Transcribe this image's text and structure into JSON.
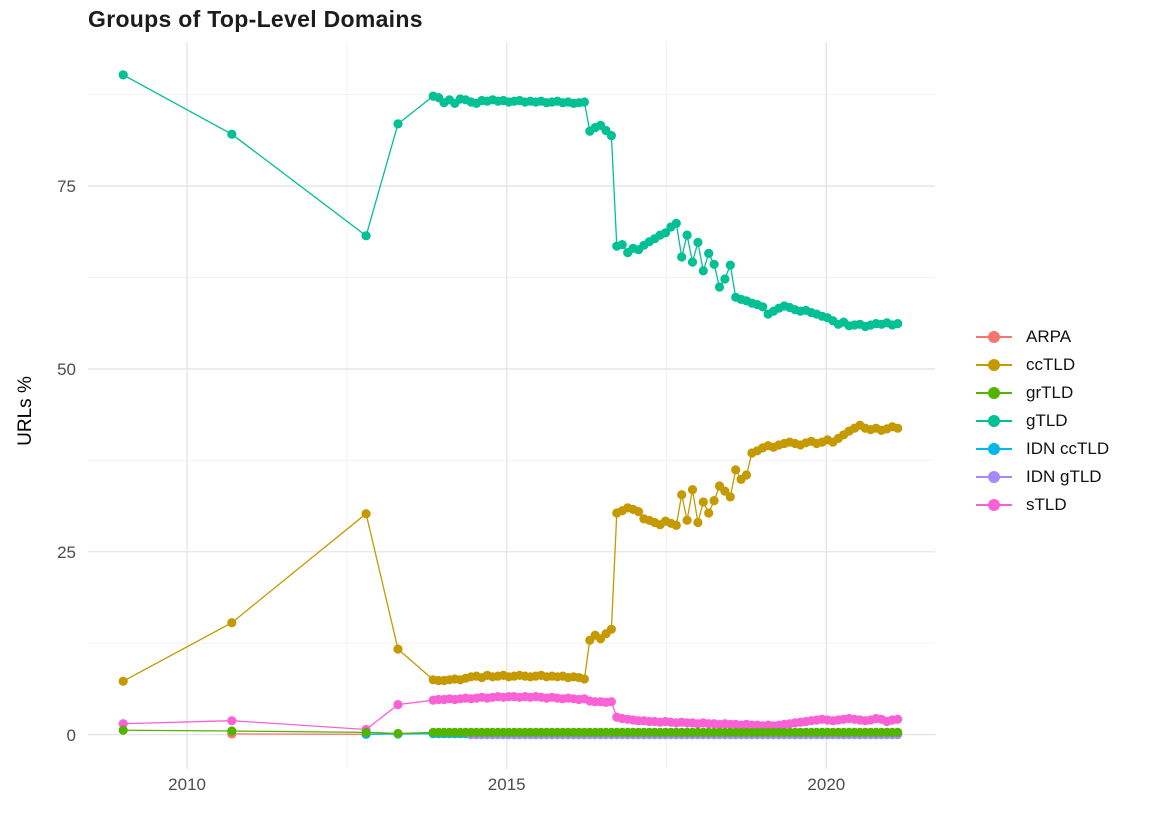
{
  "chart_data": {
    "type": "line",
    "title": "Groups of Top-Level Domains",
    "xlabel": "",
    "ylabel": "URLs %",
    "x_ticks": [
      "2010",
      "2015",
      "2020"
    ],
    "x_tick_values": [
      2010,
      2015,
      2020
    ],
    "x_minor_ticks": [
      2012.5,
      2017.5
    ],
    "y_ticks": [
      "0",
      "25",
      "50",
      "75"
    ],
    "y_tick_values": [
      0,
      25,
      50,
      75
    ],
    "y_minor_ticks": [
      12.5,
      37.5,
      62.5,
      87.5
    ],
    "xlim": [
      2008.45,
      2021.7
    ],
    "ylim": [
      -4.7,
      94.7
    ],
    "grid": true,
    "legend_position": "right",
    "legend": [
      {
        "label": "ARPA",
        "color": "#F8766D"
      },
      {
        "label": "ccTLD",
        "color": "#C49A00"
      },
      {
        "label": "grTLD",
        "color": "#53B400"
      },
      {
        "label": "gTLD",
        "color": "#00C094"
      },
      {
        "label": "IDN ccTLD",
        "color": "#00B6EB"
      },
      {
        "label": "IDN gTLD",
        "color": "#A58AFF"
      },
      {
        "label": "sTLD",
        "color": "#FB61D7"
      }
    ],
    "series": [
      {
        "name": "ARPA",
        "color": "#F8766D",
        "points": [
          [
            2010.7,
            0.1
          ],
          [
            2012.8,
            0.05
          ]
        ]
      },
      {
        "name": "IDN ccTLD",
        "color": "#00B6EB",
        "points": [
          [
            2012.8,
            0.05
          ],
          [
            2013.3,
            0.08
          ]
        ],
        "dense": {
          "x_start": 2013.85,
          "x_step": 0.0845,
          "fill": {
            "count": 87,
            "value": 0.12
          }
        }
      },
      {
        "name": "IDN gTLD",
        "color": "#A58AFF",
        "points": [],
        "dense": {
          "x_start": 2014.44,
          "x_step": 0.0845,
          "fill": {
            "count": 80,
            "value": 0.0
          }
        }
      },
      {
        "name": "ccTLD",
        "color": "#C49A00",
        "points": [
          [
            2009.0,
            7.3
          ],
          [
            2010.7,
            15.3
          ],
          [
            2012.8,
            30.2
          ],
          [
            2013.3,
            11.7
          ]
        ],
        "dense": {
          "x_start": 2013.85,
          "x_step": 0.0845,
          "values": [
            7.5,
            7.4,
            7.4,
            7.5,
            7.6,
            7.5,
            7.7,
            7.9,
            8.0,
            7.8,
            8.1,
            7.9,
            8.0,
            8.1,
            7.9,
            8.0,
            8.1,
            8.0,
            7.9,
            8.0,
            8.1,
            7.9,
            8.0,
            7.9,
            8.0,
            7.8,
            7.9,
            7.8,
            7.6,
            12.9,
            13.6,
            13.1,
            13.8,
            14.4,
            30.3,
            30.6,
            31.0,
            30.8,
            30.5,
            29.5,
            29.3,
            29.0,
            28.7,
            29.2,
            28.9,
            28.6,
            32.8,
            29.3,
            33.5,
            29.0,
            31.8,
            30.3,
            32.0,
            34.0,
            33.3,
            32.5,
            36.2,
            34.9,
            35.5,
            38.5,
            38.8,
            39.2,
            39.5,
            39.3,
            39.6,
            39.8,
            40.0,
            39.8,
            39.6,
            39.9,
            40.1,
            39.8,
            40.0,
            40.3,
            40.0,
            40.5,
            41.0,
            41.5,
            41.9,
            42.3,
            41.9,
            41.7,
            41.9,
            41.6,
            41.8,
            42.1,
            41.9
          ]
        }
      },
      {
        "name": "sTLD",
        "color": "#FB61D7",
        "points": [
          [
            2009.0,
            1.5
          ],
          [
            2010.7,
            1.9
          ],
          [
            2012.8,
            0.7
          ],
          [
            2013.3,
            4.1
          ]
        ],
        "dense": {
          "x_start": 2013.85,
          "x_step": 0.0845,
          "values": [
            4.7,
            4.8,
            4.8,
            4.9,
            4.8,
            4.9,
            5.0,
            4.9,
            5.0,
            5.1,
            5.0,
            5.1,
            5.2,
            5.1,
            5.2,
            5.2,
            5.1,
            5.2,
            5.1,
            5.2,
            5.1,
            5.0,
            5.1,
            5.0,
            4.9,
            5.0,
            4.9,
            4.8,
            4.9,
            4.6,
            4.5,
            4.5,
            4.4,
            4.5,
            2.4,
            2.2,
            2.1,
            2.0,
            1.9,
            1.9,
            1.8,
            1.8,
            1.7,
            1.8,
            1.7,
            1.6,
            1.7,
            1.6,
            1.6,
            1.5,
            1.6,
            1.5,
            1.5,
            1.4,
            1.5,
            1.4,
            1.4,
            1.3,
            1.4,
            1.3,
            1.3,
            1.2,
            1.3,
            1.2,
            1.3,
            1.4,
            1.5,
            1.6,
            1.7,
            1.8,
            1.9,
            2.0,
            2.1,
            2.0,
            1.9,
            2.0,
            2.1,
            2.2,
            2.1,
            2.0,
            1.9,
            2.0,
            2.2,
            2.1,
            1.8,
            2.0,
            2.1
          ]
        }
      },
      {
        "name": "gTLD",
        "color": "#00C094",
        "points": [
          [
            2009.0,
            90.2
          ],
          [
            2010.7,
            82.1
          ],
          [
            2012.8,
            68.2
          ],
          [
            2013.3,
            83.5
          ]
        ],
        "dense": {
          "x_start": 2013.85,
          "x_step": 0.0845,
          "values": [
            87.3,
            87.1,
            86.4,
            86.8,
            86.3,
            86.9,
            86.8,
            86.5,
            86.3,
            86.7,
            86.6,
            86.8,
            86.6,
            86.7,
            86.5,
            86.6,
            86.7,
            86.5,
            86.6,
            86.5,
            86.6,
            86.4,
            86.5,
            86.6,
            86.4,
            86.5,
            86.3,
            86.4,
            86.5,
            82.5,
            83.0,
            83.3,
            82.6,
            81.9,
            66.8,
            67.0,
            65.9,
            66.5,
            66.3,
            66.9,
            67.4,
            67.8,
            68.3,
            68.6,
            69.4,
            69.9,
            65.3,
            68.3,
            64.6,
            67.3,
            63.4,
            65.8,
            64.3,
            61.2,
            62.3,
            64.2,
            59.8,
            59.5,
            59.3,
            59.0,
            58.8,
            58.5,
            57.5,
            57.9,
            58.3,
            58.6,
            58.4,
            58.1,
            57.9,
            58.0,
            57.7,
            57.5,
            57.2,
            57.0,
            56.6,
            56.1,
            56.4,
            55.9,
            56.0,
            56.1,
            55.8,
            56.0,
            56.2,
            56.1,
            56.3,
            56.0,
            56.2
          ]
        }
      },
      {
        "name": "grTLD",
        "color": "#53B400",
        "points": [
          [
            2009.0,
            0.6
          ],
          [
            2010.7,
            0.5
          ],
          [
            2012.8,
            0.3
          ],
          [
            2013.3,
            0.15
          ]
        ],
        "dense": {
          "x_start": 2013.85,
          "x_step": 0.0845,
          "fill": {
            "count": 87,
            "value": 0.3
          }
        }
      }
    ]
  }
}
